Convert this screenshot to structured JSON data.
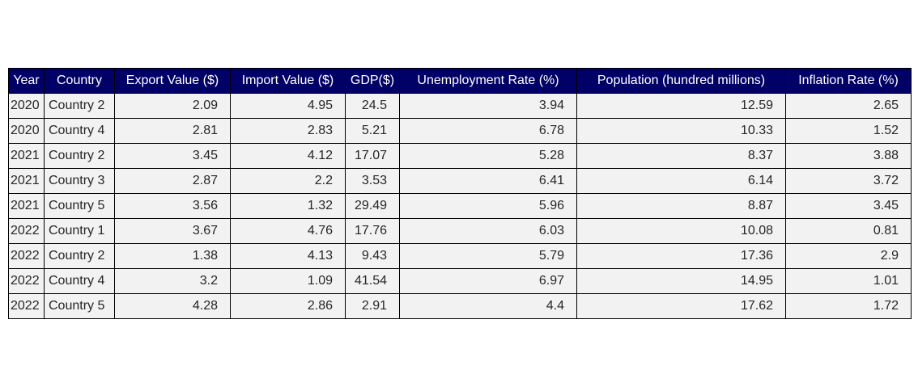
{
  "chart_data": {
    "type": "table",
    "columns": [
      "Year",
      "Country",
      "Export Value ($)",
      "Import Value ($)",
      "GDP($)",
      "Unemployment Rate (%)",
      "Population (hundred millions)",
      "Inflation Rate (%)"
    ],
    "rows": [
      [
        "2020",
        "Country 2",
        "2.09",
        "4.95",
        "24.5",
        "3.94",
        "12.59",
        "2.65"
      ],
      [
        "2020",
        "Country 4",
        "2.81",
        "2.83",
        "5.21",
        "6.78",
        "10.33",
        "1.52"
      ],
      [
        "2021",
        "Country 2",
        "3.45",
        "4.12",
        "17.07",
        "5.28",
        "8.37",
        "3.88"
      ],
      [
        "2021",
        "Country 3",
        "2.87",
        "2.2",
        "3.53",
        "6.41",
        "6.14",
        "3.72"
      ],
      [
        "2021",
        "Country 5",
        "3.56",
        "1.32",
        "29.49",
        "5.96",
        "8.87",
        "3.45"
      ],
      [
        "2022",
        "Country 1",
        "3.67",
        "4.76",
        "17.76",
        "6.03",
        "10.08",
        "0.81"
      ],
      [
        "2022",
        "Country 2",
        "1.38",
        "4.13",
        "9.43",
        "5.79",
        "17.36",
        "2.9"
      ],
      [
        "2022",
        "Country 4",
        "3.2",
        "1.09",
        "41.54",
        "6.97",
        "14.95",
        "1.01"
      ],
      [
        "2022",
        "Country 5",
        "4.28",
        "2.86",
        "2.91",
        "4.4",
        "17.62",
        "1.72"
      ]
    ],
    "colors": {
      "header_background": "#000066",
      "header_text": "#ffffff",
      "cell_background": "#f2f2f2",
      "cell_text": "#262626",
      "border": "#000000"
    }
  }
}
